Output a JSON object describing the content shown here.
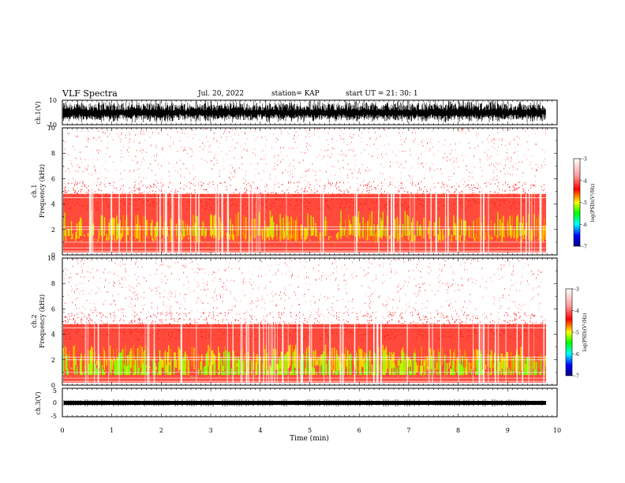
{
  "header": {
    "title": "VLF Spectra",
    "date": "Jul. 20, 2022",
    "station": "station= KAP",
    "start_ut": "start UT =  21: 30: 1"
  },
  "chart_data": [
    {
      "type": "line",
      "panel": "ch1-waveform",
      "ylabel": "ch.1(V)",
      "ylim": [
        -10,
        10
      ],
      "yticks": [
        "10",
        "-10"
      ],
      "xlim": [
        0,
        10
      ],
      "note_series_color": "#000000"
    },
    {
      "type": "heatmap",
      "panel": "ch1-spectrogram",
      "ylabel": "ch.1 Frequency (kHz)",
      "ylim": [
        0,
        10
      ],
      "yticks": [
        "0",
        "2",
        "4",
        "6",
        "8",
        "10"
      ],
      "xlim": [
        0,
        10
      ],
      "colorbar": {
        "label": "log(PSD)(V²/Hz)",
        "range": [
          -7,
          -3
        ],
        "ticks": [
          "-3",
          "-4",
          "-5",
          "-6",
          "-7"
        ]
      }
    },
    {
      "type": "heatmap",
      "panel": "ch2-spectrogram",
      "ylabel": "ch.2 Frequency (kHz)",
      "ylim": [
        0,
        10
      ],
      "yticks": [
        "0",
        "2",
        "4",
        "6",
        "8",
        "10"
      ],
      "xlim": [
        0,
        10
      ],
      "colorbar": {
        "label": "log(PSD)(V²/Hz)",
        "range": [
          -7,
          -3
        ],
        "ticks": [
          "-3",
          "-4",
          "-5",
          "-6",
          "-7"
        ]
      }
    },
    {
      "type": "line",
      "panel": "ch3-waveform",
      "ylabel": "ch.3(V)",
      "ylim": [
        -5,
        5
      ],
      "yticks": [
        "5",
        "0",
        "-5"
      ],
      "xlim": [
        0,
        10
      ],
      "xlabel": "Time (min)",
      "xticks": [
        "0",
        "1",
        "2",
        "3",
        "4",
        "5",
        "6",
        "7",
        "8",
        "9",
        "10"
      ]
    }
  ],
  "colors": {
    "axis": "#000000",
    "background": "#ffffff",
    "cmap_top": "#ffffff",
    "cmap_red": "#ff0000",
    "cmap_yellow": "#ffff00",
    "cmap_green": "#00ff00",
    "cmap_blue": "#0000ff",
    "cmap_bottom": "#000080"
  }
}
